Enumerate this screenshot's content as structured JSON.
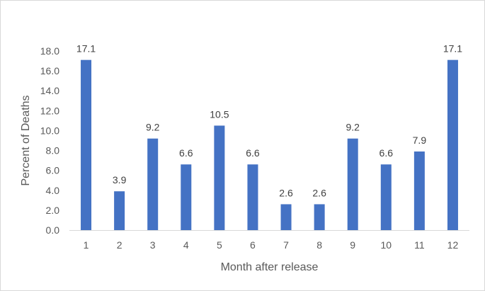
{
  "chart_data": {
    "type": "bar",
    "categories": [
      "1",
      "2",
      "3",
      "4",
      "5",
      "6",
      "7",
      "8",
      "9",
      "10",
      "11",
      "12"
    ],
    "values": [
      17.1,
      3.9,
      9.2,
      6.6,
      10.5,
      6.6,
      2.6,
      2.6,
      9.2,
      6.6,
      7.9,
      17.1
    ],
    "xlabel": "Month after release",
    "ylabel": "Percent of Deaths",
    "ylim": [
      0,
      18
    ],
    "y_ticks": [
      "0.0",
      "2.0",
      "4.0",
      "6.0",
      "8.0",
      "10.0",
      "12.0",
      "14.0",
      "16.0",
      "18.0"
    ],
    "grid": false,
    "data_labels": true,
    "bar_color": "#4472C4"
  }
}
